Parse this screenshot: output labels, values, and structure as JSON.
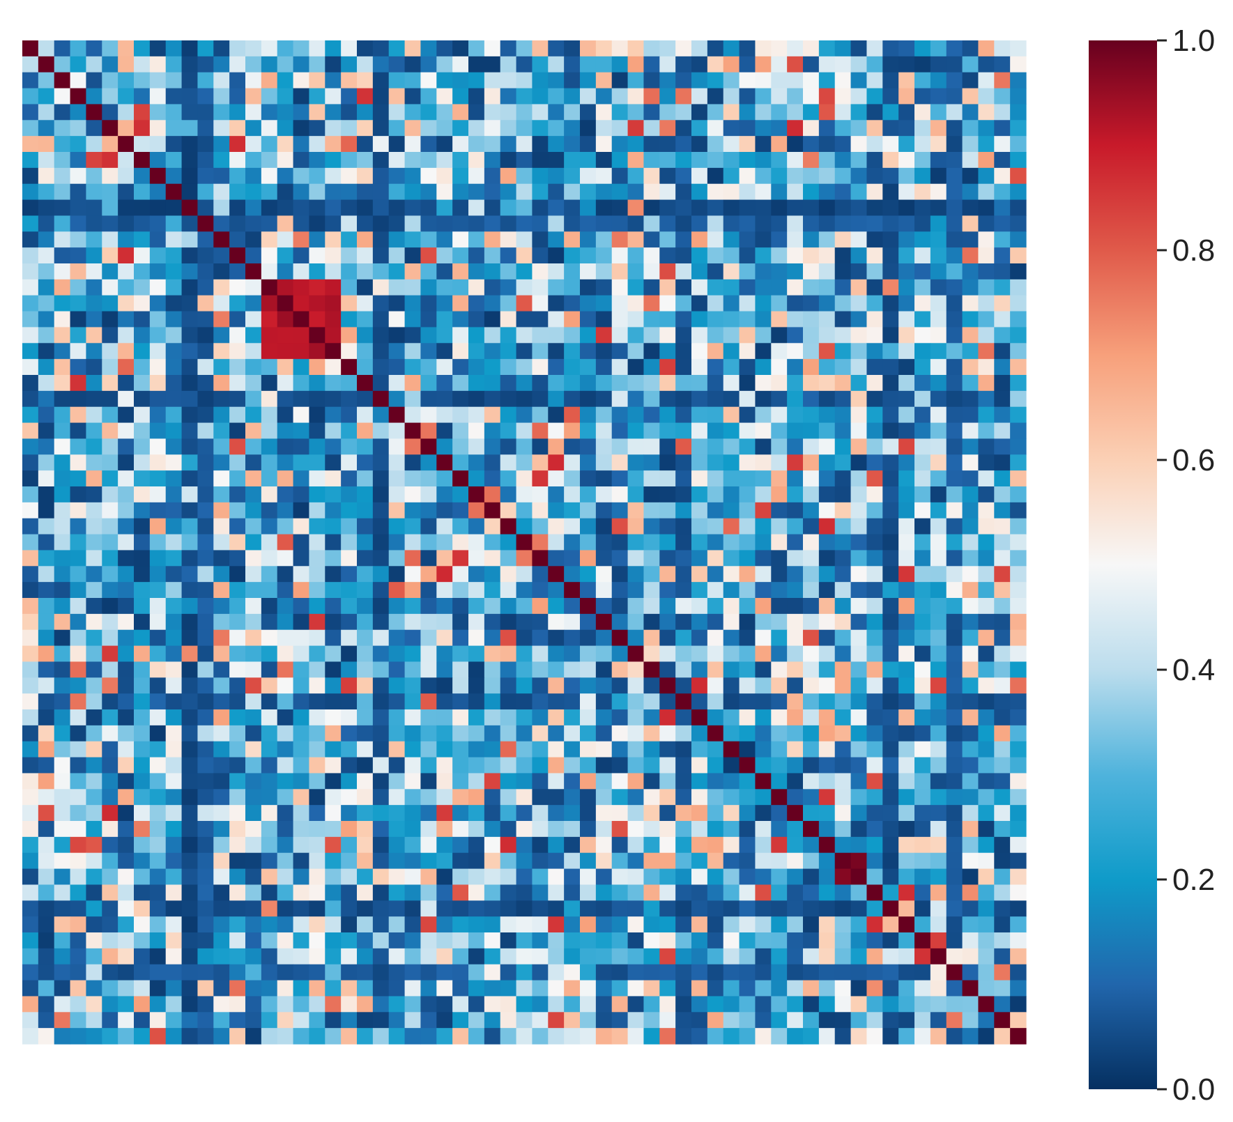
{
  "chart_data": {
    "type": "heatmap",
    "title": "",
    "xlabel": "",
    "ylabel": "",
    "rows": 63,
    "cols": 63,
    "value_range": [
      0.0,
      1.0
    ],
    "colormap": "RdBu_r",
    "diagonal_value": 1.0,
    "colorbar": {
      "ticks": [
        0.0,
        0.2,
        0.4,
        0.6,
        0.8,
        1.0
      ],
      "tick_labels": [
        "0.0",
        "0.2",
        "0.4",
        "0.6",
        "0.8",
        "1.0"
      ],
      "placement": "right"
    },
    "blocks": [
      {
        "rows": [
          15,
          19
        ],
        "cols": [
          15,
          19
        ],
        "value": 0.92,
        "note": "high-correlation block"
      },
      {
        "rows": [
          51,
          52
        ],
        "cols": [
          51,
          52
        ],
        "value": 0.98
      },
      {
        "rows": [
          56,
          57
        ],
        "cols": [
          56,
          57
        ],
        "value": 0.85
      }
    ],
    "low_bands": [
      {
        "index": 10,
        "value": 0.02
      },
      {
        "index": 11,
        "value": 0.05
      },
      {
        "index": 22,
        "value": 0.03
      },
      {
        "index": 41,
        "value": 0.04
      },
      {
        "index": 54,
        "value": 0.03
      },
      {
        "index": 58,
        "value": 0.05
      }
    ]
  },
  "colors": {
    "cmap_stops": [
      {
        "v": 0.0,
        "hex": "#053061"
      },
      {
        "v": 0.1,
        "hex": "#2166ac"
      },
      {
        "v": 0.2,
        "hex": "#0f9bc9"
      },
      {
        "v": 0.3,
        "hex": "#4fb3dc"
      },
      {
        "v": 0.4,
        "hex": "#bcdded"
      },
      {
        "v": 0.5,
        "hex": "#f7f7f7"
      },
      {
        "v": 0.6,
        "hex": "#fbd0b5"
      },
      {
        "v": 0.7,
        "hex": "#f7a07b"
      },
      {
        "v": 0.8,
        "hex": "#e05a4a"
      },
      {
        "v": 0.9,
        "hex": "#c81a2a"
      },
      {
        "v": 1.0,
        "hex": "#67001f"
      }
    ]
  }
}
